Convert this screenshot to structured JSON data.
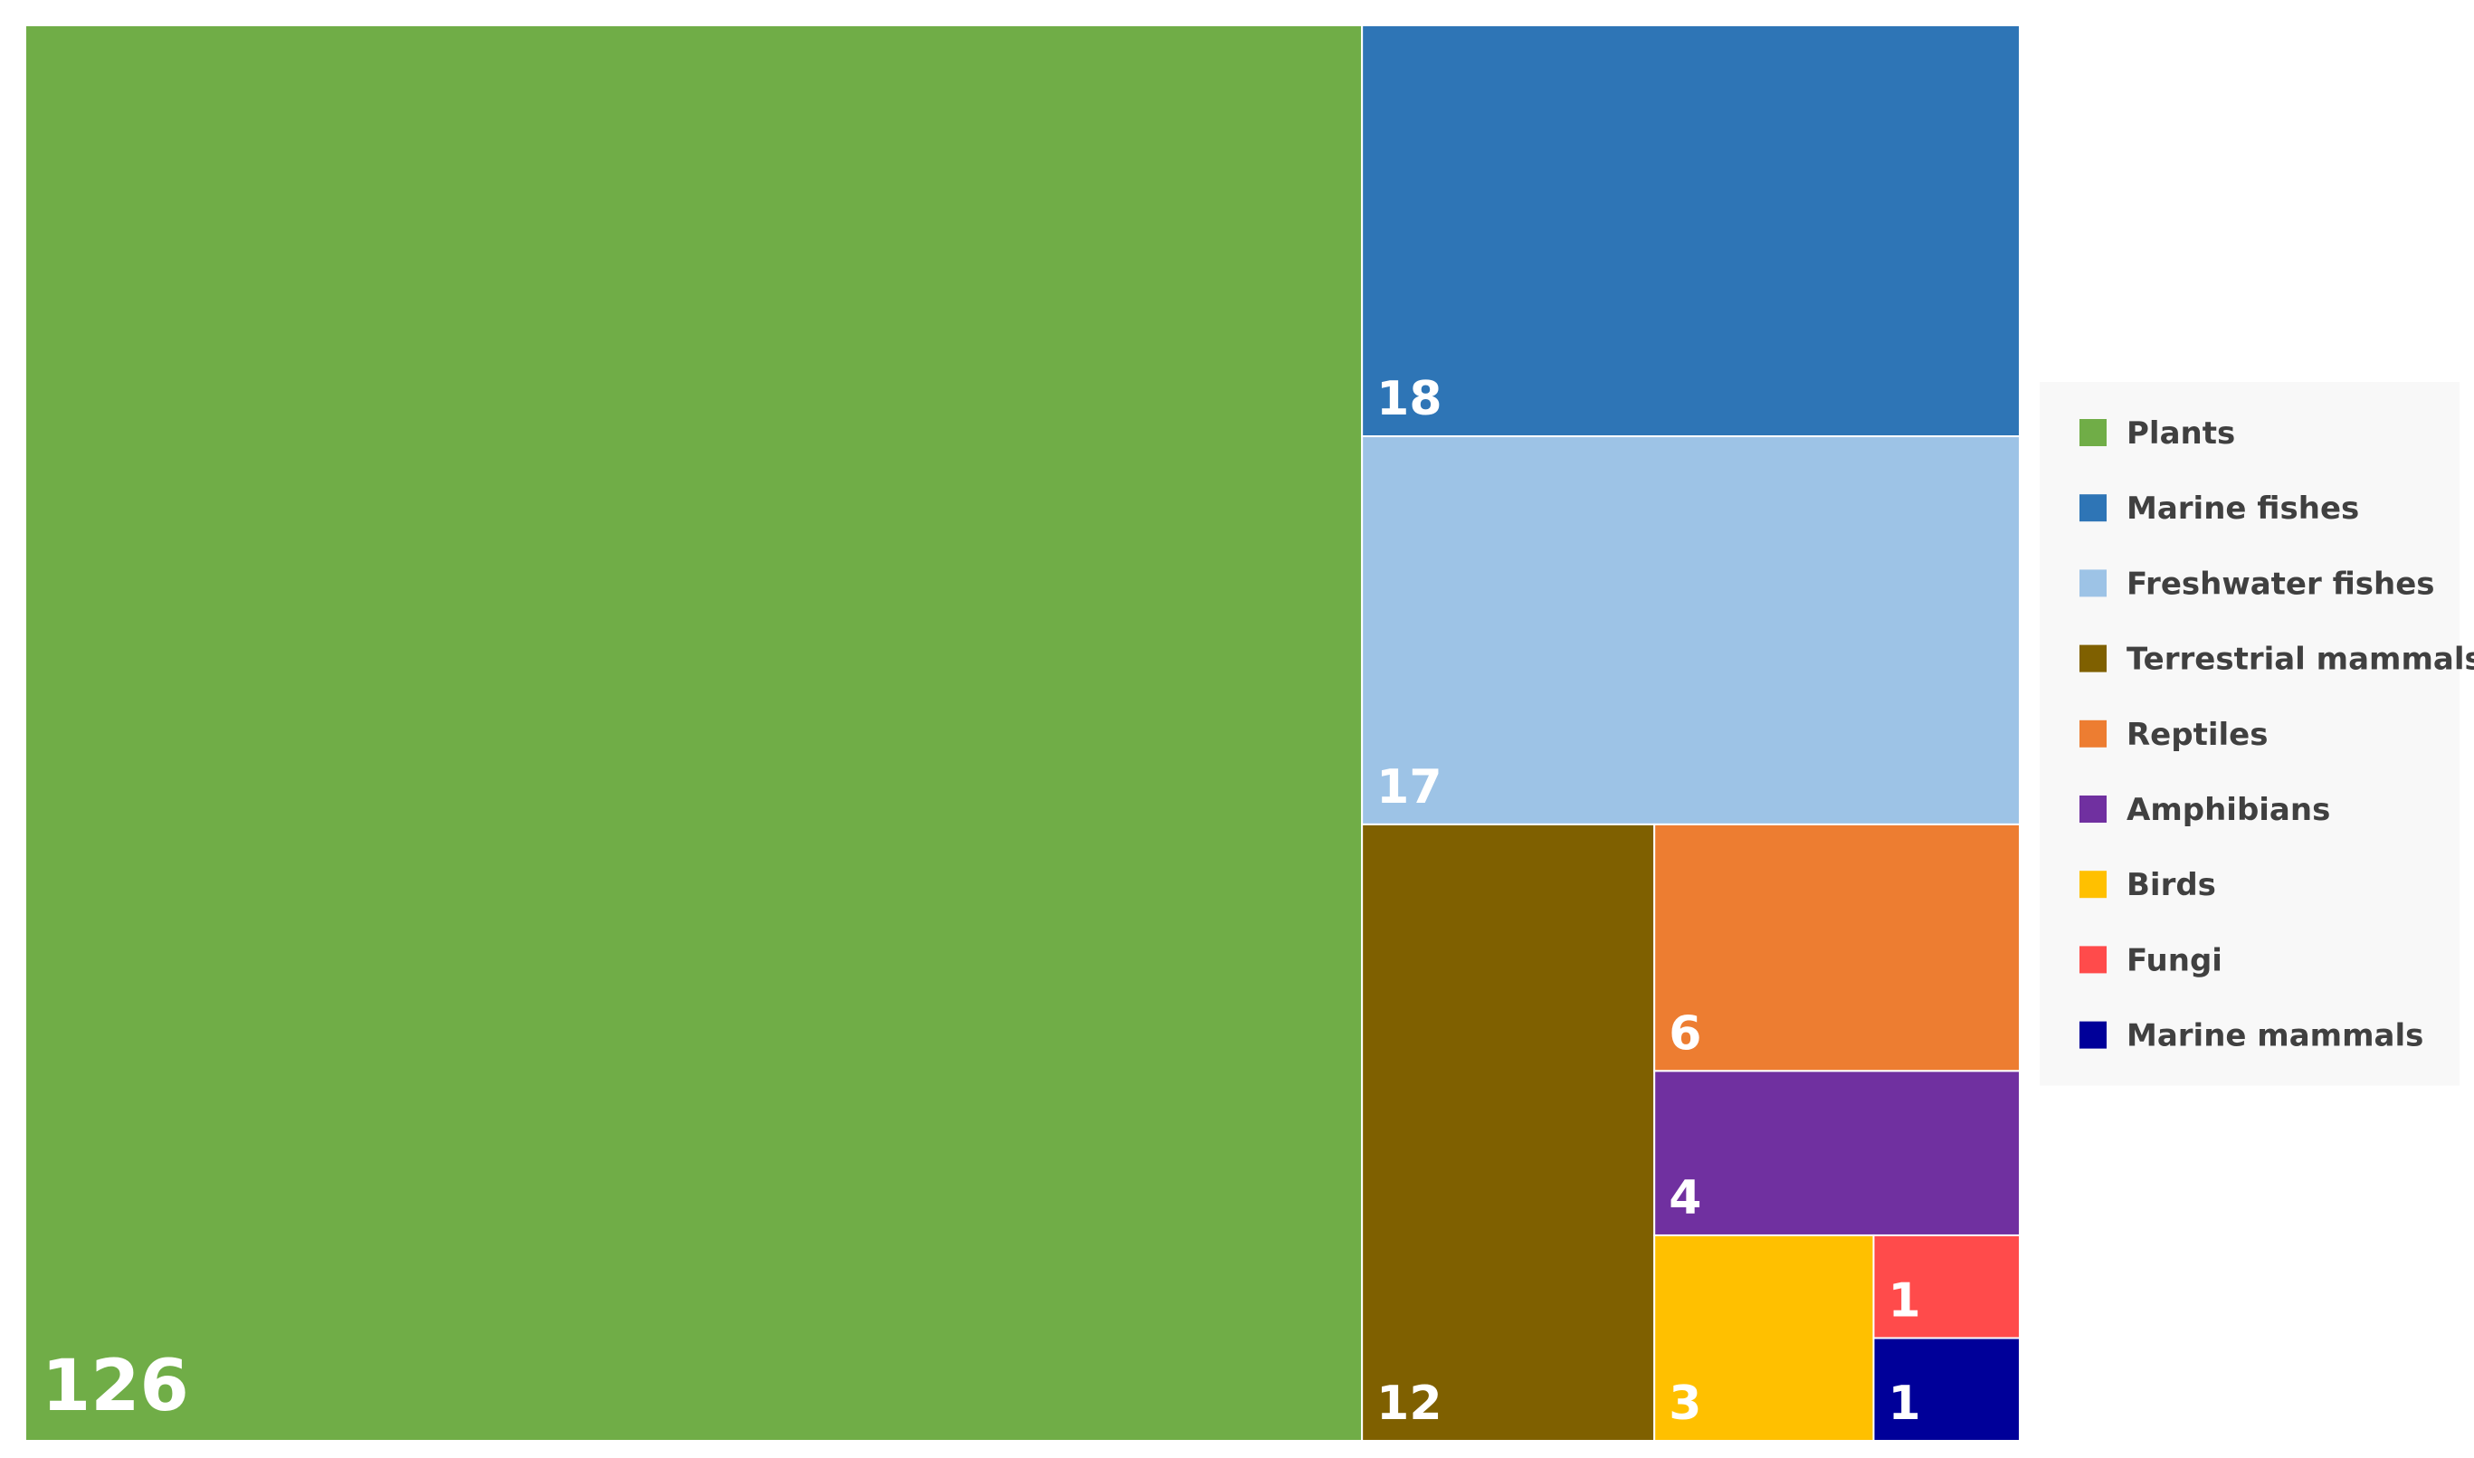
{
  "chart_data": {
    "type": "treemap",
    "title": "",
    "legend_position": "right",
    "items": [
      {
        "name": "Plants",
        "value": 126,
        "color": "#70AD47"
      },
      {
        "name": "Marine fishes",
        "value": 18,
        "color": "#2E75B6"
      },
      {
        "name": "Freshwater fishes",
        "value": 17,
        "color": "#9DC3E6"
      },
      {
        "name": "Terrestrial mammals",
        "value": 12,
        "color": "#7F6000"
      },
      {
        "name": "Reptiles",
        "value": 6,
        "color": "#ED7D31"
      },
      {
        "name": "Amphibians",
        "value": 4,
        "color": "#7030A0"
      },
      {
        "name": "Birds",
        "value": 3,
        "color": "#FFC000"
      },
      {
        "name": "Fungi",
        "value": 1,
        "color": "#FF4B4B"
      },
      {
        "name": "Marine mammals",
        "value": 1,
        "color": "#000099"
      }
    ]
  }
}
